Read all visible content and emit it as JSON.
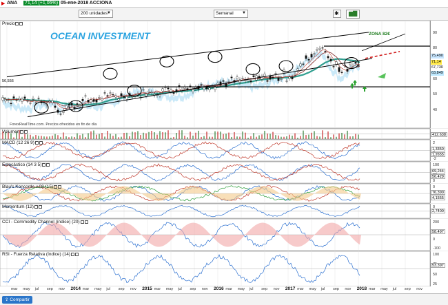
{
  "window": {
    "title": "ANA",
    "quote": "71,14 (+1,06%)",
    "date_symbol": "05-ene-2018 ACCIONA"
  },
  "toolbar": {
    "units": "200 unidades",
    "period": "Semanal"
  },
  "chart": {
    "watermark": "OCEAN INVESTMENT",
    "zone_label": "ZONA 82€",
    "source": "ForexRealTime.com. Precios ofrecidos en fin de día",
    "level_left": "56,556",
    "price_label": "Precio",
    "price_ticks": [
      "90",
      "80",
      "70",
      "60",
      "50",
      "40"
    ],
    "price_tags": [
      {
        "text": "75,490",
        "color": "#c8e6ff"
      },
      {
        "text": "71,14",
        "color": "#ffe94a"
      },
      {
        "text": "67,730",
        "color": "#ffffff"
      },
      {
        "text": "63,849",
        "color": "#bfe9ff"
      }
    ]
  },
  "panels": [
    {
      "label": "Volumen",
      "ticks": [],
      "tags": [
        "412.638"
      ]
    },
    {
      "label": "MACD (12 26 9)",
      "ticks": [
        "2",
        "0",
        "-2"
      ],
      "tags": [
        "1,3350",
        "1,2655"
      ]
    },
    {
      "label": "Estocástico (14 3 5)",
      "ticks": [
        "100",
        "50",
        "0"
      ],
      "tags": [
        "69,244",
        "56,429"
      ]
    },
    {
      "label": "Blau's Koncorde v.09 (15)",
      "ticks": [
        "0"
      ],
      "tags": [
        "76,390",
        "4,1555"
      ]
    },
    {
      "label": "Momentum (12)",
      "ticks": [
        "0"
      ],
      "tags": [
        "2,7400"
      ]
    },
    {
      "label": "CCI - Commodity Channel (índice) (20)",
      "ticks": [
        "200",
        "100",
        "0",
        "-100"
      ],
      "tags": [
        "58,497"
      ]
    },
    {
      "label": "RSI - Fuerza Relativa (índice) (14)",
      "ticks": [
        "100",
        "75",
        "50",
        "25"
      ],
      "tags": [
        "53,397"
      ]
    }
  ],
  "axis": {
    "months": [
      "mar",
      "may",
      "jul",
      "sep",
      "nov",
      "2014",
      "mar",
      "may",
      "jul",
      "sep",
      "nov",
      "2015",
      "mar",
      "may",
      "jul",
      "sep",
      "nov",
      "2016",
      "mar",
      "may",
      "jul",
      "sep",
      "nov",
      "2017",
      "mar",
      "may",
      "jul",
      "sep",
      "nov",
      "2018",
      "mar",
      "may",
      "jul",
      "sep",
      "nov"
    ],
    "years": [
      "2014",
      "2015",
      "2016",
      "2017",
      "2018"
    ]
  },
  "footer": {
    "share": "Compartir"
  }
}
